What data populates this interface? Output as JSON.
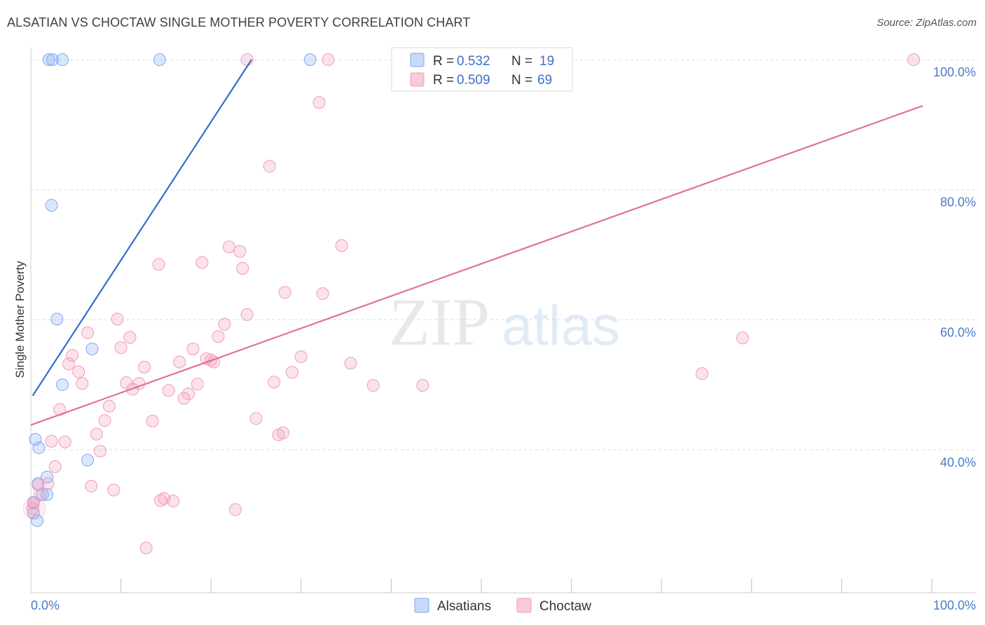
{
  "title": "ALSATIAN VS CHOCTAW SINGLE MOTHER POVERTY CORRELATION CHART",
  "source": "Source: ZipAtlas.com",
  "watermark": {
    "zip": "ZIP",
    "atlas": "atlas"
  },
  "legend_top": [
    {
      "r_label": "R = ",
      "r_value": "0.532",
      "n_label": "N = ",
      "n_value": "19",
      "color": "#7eaaf0"
    },
    {
      "r_label": "R = ",
      "r_value": "0.509",
      "n_label": "N = ",
      "n_value": "69",
      "color": "#f29bb8"
    }
  ],
  "legend_bottom": [
    {
      "label": "Alsatians",
      "color": "#7eaaf0"
    },
    {
      "label": "Choctaw",
      "color": "#f29bb8"
    }
  ],
  "chart_data": {
    "type": "scatter",
    "title": "ALSATIAN VS CHOCTAW SINGLE MOTHER POVERTY CORRELATION CHART",
    "xlabel": "",
    "ylabel": "Single Mother Poverty",
    "xlim": [
      0,
      100
    ],
    "ylim": [
      18,
      102
    ],
    "x_tick_labels": [
      "0.0%",
      "100.0%"
    ],
    "y_ticks": [
      40,
      60,
      80,
      100
    ],
    "y_tick_labels": [
      "40.0%",
      "60.0%",
      "80.0%",
      "100.0%"
    ],
    "grid": "horizontal dashed",
    "legend_position": "top-center",
    "series": [
      {
        "name": "Alsatians",
        "color": "#7eaaf0",
        "line_color": "#2f6fc8",
        "trend": {
          "x": [
            0.2,
            24.5
          ],
          "y": [
            48.3,
            100.0
          ]
        },
        "points": [
          {
            "x": 2.0,
            "y": 100.0
          },
          {
            "x": 2.4,
            "y": 100.0
          },
          {
            "x": 3.5,
            "y": 100.0
          },
          {
            "x": 14.3,
            "y": 100.0
          },
          {
            "x": 31.0,
            "y": 100.0
          },
          {
            "x": 2.3,
            "y": 77.6
          },
          {
            "x": 2.9,
            "y": 60.1
          },
          {
            "x": 6.8,
            "y": 55.5
          },
          {
            "x": 3.5,
            "y": 50.0
          },
          {
            "x": 0.5,
            "y": 41.6
          },
          {
            "x": 0.9,
            "y": 40.3
          },
          {
            "x": 6.3,
            "y": 38.4
          },
          {
            "x": 1.8,
            "y": 35.8
          },
          {
            "x": 0.8,
            "y": 34.8
          },
          {
            "x": 1.3,
            "y": 33.1
          },
          {
            "x": 1.8,
            "y": 33.1
          },
          {
            "x": 0.3,
            "y": 31.9
          },
          {
            "x": 0.3,
            "y": 30.3
          },
          {
            "x": 0.7,
            "y": 29.1
          }
        ]
      },
      {
        "name": "Choctaw",
        "color": "#f29bb8",
        "line_color": "#e0719a",
        "trend": {
          "x": [
            0.0,
            99.0
          ],
          "y": [
            43.8,
            92.9
          ]
        },
        "points": [
          {
            "x": 24.0,
            "y": 100.0
          },
          {
            "x": 33.0,
            "y": 100.0
          },
          {
            "x": 98.0,
            "y": 100.0
          },
          {
            "x": 32.0,
            "y": 93.4
          },
          {
            "x": 26.5,
            "y": 83.6
          },
          {
            "x": 34.5,
            "y": 71.4
          },
          {
            "x": 22.0,
            "y": 71.2
          },
          {
            "x": 23.2,
            "y": 70.5
          },
          {
            "x": 19.0,
            "y": 68.8
          },
          {
            "x": 14.2,
            "y": 68.5
          },
          {
            "x": 23.5,
            "y": 67.9
          },
          {
            "x": 28.2,
            "y": 64.2
          },
          {
            "x": 32.4,
            "y": 64.0
          },
          {
            "x": 24.0,
            "y": 60.8
          },
          {
            "x": 9.6,
            "y": 60.1
          },
          {
            "x": 21.5,
            "y": 59.3
          },
          {
            "x": 6.3,
            "y": 58.0
          },
          {
            "x": 20.8,
            "y": 57.4
          },
          {
            "x": 11.0,
            "y": 57.3
          },
          {
            "x": 10.0,
            "y": 55.7
          },
          {
            "x": 18.0,
            "y": 55.5
          },
          {
            "x": 4.6,
            "y": 54.5
          },
          {
            "x": 30.0,
            "y": 54.3
          },
          {
            "x": 19.5,
            "y": 54.0
          },
          {
            "x": 20.0,
            "y": 53.8
          },
          {
            "x": 16.5,
            "y": 53.5
          },
          {
            "x": 20.3,
            "y": 53.5
          },
          {
            "x": 4.2,
            "y": 53.2
          },
          {
            "x": 35.5,
            "y": 53.3
          },
          {
            "x": 12.6,
            "y": 52.7
          },
          {
            "x": 5.3,
            "y": 52.0
          },
          {
            "x": 29.0,
            "y": 51.9
          },
          {
            "x": 74.5,
            "y": 51.7
          },
          {
            "x": 79.0,
            "y": 57.2
          },
          {
            "x": 10.6,
            "y": 50.3
          },
          {
            "x": 12.0,
            "y": 50.2
          },
          {
            "x": 5.7,
            "y": 50.2
          },
          {
            "x": 18.5,
            "y": 50.1
          },
          {
            "x": 27.0,
            "y": 50.4
          },
          {
            "x": 38.0,
            "y": 49.9
          },
          {
            "x": 43.5,
            "y": 49.9
          },
          {
            "x": 11.3,
            "y": 49.3
          },
          {
            "x": 15.3,
            "y": 49.1
          },
          {
            "x": 17.5,
            "y": 48.6
          },
          {
            "x": 17.0,
            "y": 47.9
          },
          {
            "x": 8.7,
            "y": 46.7
          },
          {
            "x": 3.2,
            "y": 46.2
          },
          {
            "x": 25.0,
            "y": 44.8
          },
          {
            "x": 8.2,
            "y": 44.5
          },
          {
            "x": 13.5,
            "y": 44.4
          },
          {
            "x": 7.3,
            "y": 42.4
          },
          {
            "x": 28.0,
            "y": 42.6
          },
          {
            "x": 27.5,
            "y": 42.3
          },
          {
            "x": 2.3,
            "y": 41.3
          },
          {
            "x": 3.8,
            "y": 41.2
          },
          {
            "x": 7.7,
            "y": 39.8
          },
          {
            "x": 2.7,
            "y": 37.4
          },
          {
            "x": 1.9,
            "y": 34.8
          },
          {
            "x": 0.8,
            "y": 34.6
          },
          {
            "x": 6.7,
            "y": 34.4
          },
          {
            "x": 9.2,
            "y": 33.8
          },
          {
            "x": 14.8,
            "y": 32.5
          },
          {
            "x": 14.4,
            "y": 32.2
          },
          {
            "x": 15.8,
            "y": 32.1
          },
          {
            "x": 22.7,
            "y": 30.8
          },
          {
            "x": 0.2,
            "y": 31.0
          },
          {
            "x": 12.8,
            "y": 24.9
          },
          {
            "x": 0.3,
            "y": 31.8
          },
          {
            "x": 1.0,
            "y": 33.0
          }
        ]
      }
    ]
  }
}
